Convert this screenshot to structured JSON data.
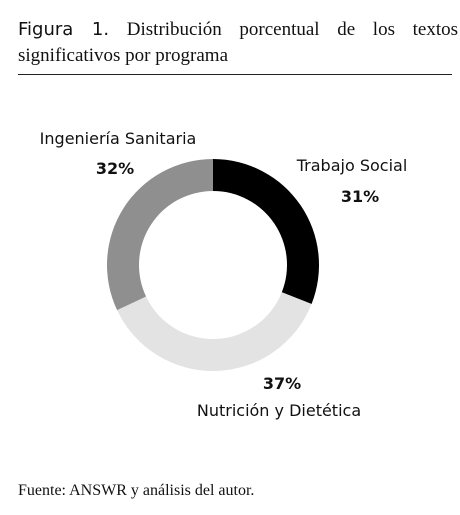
{
  "figure": {
    "label": "Figura 1.",
    "title": "Distribución porcentual de los textos significativos por programa",
    "source": "Fuente: ANSWR y análisis del autor."
  },
  "chart_data": {
    "type": "pie",
    "donut": true,
    "slices": [
      {
        "label": "Trabajo Social",
        "value": 31,
        "value_label": "31%",
        "color": "#000000"
      },
      {
        "label": "Nutrición y Dietética",
        "value": 37,
        "value_label": "37%",
        "color": "#e3e3e3"
      },
      {
        "label": "Ingeniería Sanitaria",
        "value": 32,
        "value_label": "32%",
        "color": "#8f8f8f"
      }
    ]
  }
}
